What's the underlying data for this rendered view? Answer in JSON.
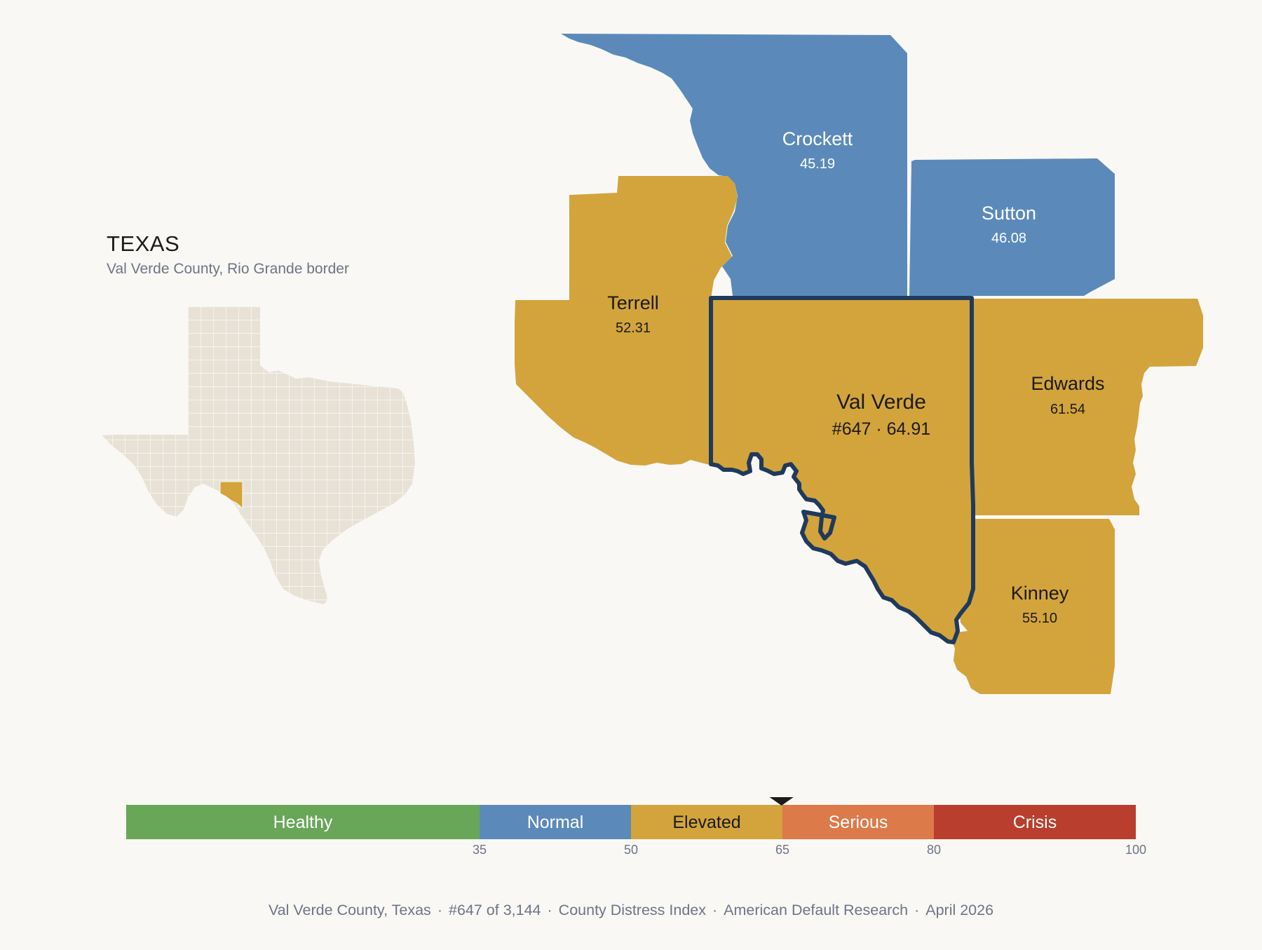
{
  "inset": {
    "state_title": "TEXAS",
    "subtitle": "Val Verde County, Rio Grande border"
  },
  "counties": [
    {
      "id": "crockett",
      "name": "Crockett",
      "value": "45.19",
      "category": "Normal"
    },
    {
      "id": "sutton",
      "name": "Sutton",
      "value": "46.08",
      "category": "Normal"
    },
    {
      "id": "terrell",
      "name": "Terrell",
      "value": "52.31",
      "category": "Elevated"
    },
    {
      "id": "val-verde",
      "name": "Val Verde",
      "value": "#647 · 64.91",
      "category": "Elevated",
      "highlighted": true
    },
    {
      "id": "edwards",
      "name": "Edwards",
      "value": "61.54",
      "category": "Elevated"
    },
    {
      "id": "kinney",
      "name": "Kinney",
      "value": "55.10",
      "category": "Elevated"
    }
  ],
  "scale": {
    "min": 0,
    "max": 100,
    "marker_value": 64.91,
    "bands": [
      {
        "label": "Healthy",
        "from": 0,
        "to": 35,
        "color": "#68a758",
        "text_color": "#ffffff"
      },
      {
        "label": "Normal",
        "from": 35,
        "to": 50,
        "color": "#5b8aba",
        "text_color": "#ffffff"
      },
      {
        "label": "Elevated",
        "from": 50,
        "to": 65,
        "color": "#d3a43b",
        "text_color": "#1b1b1b"
      },
      {
        "label": "Serious",
        "from": 65,
        "to": 80,
        "color": "#dc7a4a",
        "text_color": "#ffffff"
      },
      {
        "label": "Crisis",
        "from": 80,
        "to": 100,
        "color": "#b93e2e",
        "text_color": "#ffffff"
      }
    ],
    "ticks": [
      "35",
      "50",
      "65",
      "80",
      "100"
    ]
  },
  "colors": {
    "normal": "#5b8aba",
    "elevated": "#d3a43b",
    "highlight_outline": "#1f3a5c",
    "inset_land": "#e8e2d6",
    "inset_highlight": "#d3a43b",
    "background": "#f9f8f5"
  },
  "footer": {
    "county": "Val Verde County, Texas",
    "rank": "#647 of 3,144",
    "index_name": "County Distress Index",
    "publisher": "American Default Research",
    "date": "April 2026"
  }
}
